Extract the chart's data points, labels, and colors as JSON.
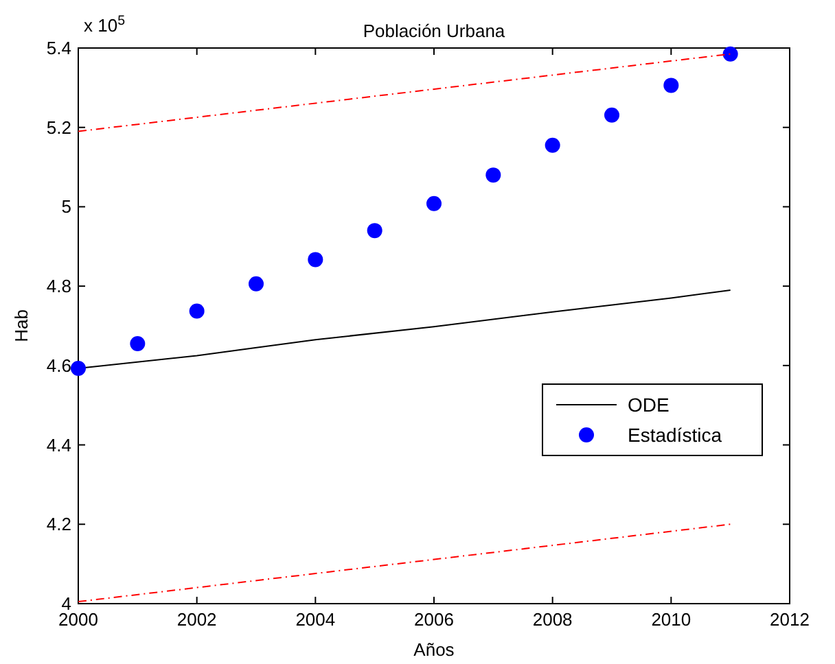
{
  "chart_data": {
    "type": "line",
    "title": "Población Urbana",
    "xlabel": "Años",
    "ylabel": "Hab",
    "annotations": [
      "x 10$^{5}$"
    ],
    "xlim": [
      2000,
      2012
    ],
    "xticks": [
      2000,
      2002,
      2004,
      2006,
      2008,
      2010,
      2012
    ],
    "ylim": [
      4,
      5.4
    ],
    "yticks": [
      4,
      4.2,
      4.4,
      4.6,
      4.8,
      5,
      5.2,
      5.4
    ],
    "grid": false,
    "legend": "right",
    "series": [
      {
        "name": "ODE",
        "type": "line",
        "color": "#000000",
        "line_style": "solid",
        "x": [
          2000,
          2002,
          2004,
          2006,
          2008,
          2010,
          2011
        ],
        "values": [
          4.593,
          4.625,
          4.665,
          4.698,
          4.735,
          4.77,
          4.79
        ]
      },
      {
        "name": "Estadística",
        "type": "scatter",
        "color": "#0000ff",
        "marker": "circle",
        "x": [
          2000,
          2001,
          2002,
          2003,
          2004,
          2005,
          2006,
          2007,
          2008,
          2009,
          2010,
          2011
        ],
        "values": [
          4.593,
          4.655,
          4.737,
          4.806,
          4.867,
          4.94,
          5.008,
          5.08,
          5.155,
          5.231,
          5.306,
          5.385
        ]
      },
      {
        "type": "line",
        "color": "#ff0000",
        "line_style": "dashed",
        "x": [
          2000,
          2011
        ],
        "values": [
          5.19,
          5.385
        ]
      },
      {
        "type": "line",
        "color": "#ff0000",
        "line_style": "dashed",
        "x": [
          2000,
          2011
        ],
        "values": [
          4.005,
          4.2
        ]
      }
    ]
  }
}
